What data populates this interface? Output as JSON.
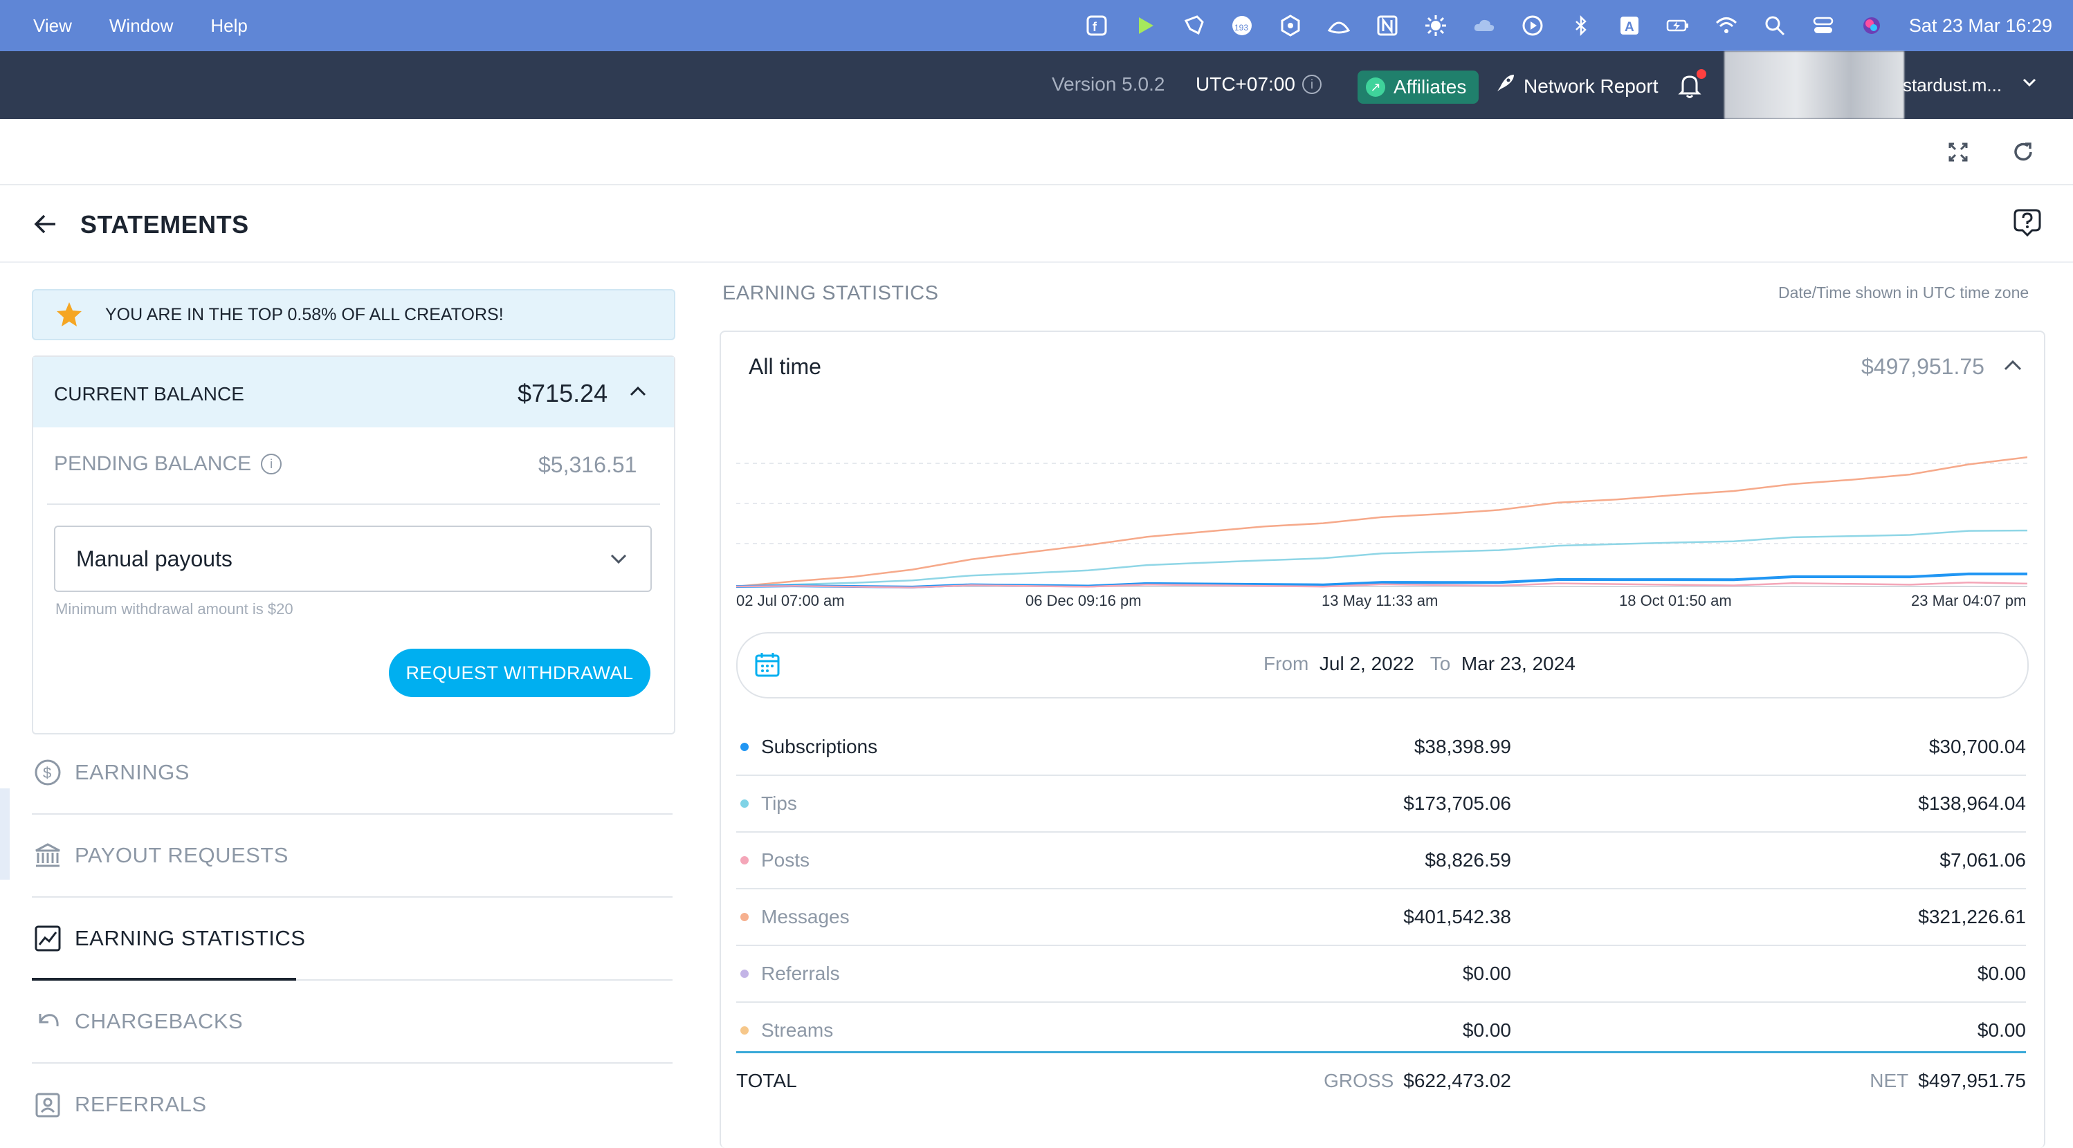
{
  "menubar": {
    "items": [
      "View",
      "Window",
      "Help"
    ],
    "clock": "Sat 23 Mar  16:29",
    "tray_icons": [
      "app-f-icon",
      "play-icon",
      "pen-icon",
      "calendar-badge-icon",
      "hexagon-icon",
      "lotus-icon",
      "notion-icon",
      "gear-sun-icon",
      "cloud-icon",
      "play-circle-icon",
      "bluetooth-icon",
      "a-keyboard-icon",
      "battery-icon",
      "wifi-icon",
      "search-icon",
      "control-center-icon",
      "siri-icon"
    ],
    "badge_count": "193"
  },
  "header": {
    "version": "Version 5.0.2",
    "timezone": "UTC+07:00",
    "affiliates": "Affiliates",
    "network_report": "Network Report",
    "account_name": "stardust.m..."
  },
  "page": {
    "title": "STATEMENTS"
  },
  "left": {
    "banner": "YOU ARE IN THE TOP 0.58% OF ALL CREATORS!",
    "current_balance_label": "CURRENT BALANCE",
    "current_balance": "$715.24",
    "pending_balance_label": "PENDING BALANCE",
    "pending_balance": "$5,316.51",
    "payout_mode": "Manual payouts",
    "min_withdrawal": "Minimum withdrawal amount is $20",
    "request_withdrawal": "REQUEST WITHDRAWAL",
    "nav": [
      {
        "label": "EARNINGS",
        "icon": "dollar-circle-icon"
      },
      {
        "label": "PAYOUT REQUESTS",
        "icon": "bank-icon"
      },
      {
        "label": "EARNING STATISTICS",
        "icon": "chart-icon"
      },
      {
        "label": "CHARGEBACKS",
        "icon": "undo-icon"
      },
      {
        "label": "REFERRALS",
        "icon": "contact-icon"
      }
    ]
  },
  "stats": {
    "title": "EARNING STATISTICS",
    "note": "Date/Time shown in UTC time zone",
    "period": "All time",
    "period_total": "$497,951.75",
    "date_from_label": "From",
    "date_from": "Jul 2, 2022",
    "date_to_label": "To",
    "date_to": "Mar 23, 2024",
    "rows": [
      {
        "name": "Subscriptions",
        "gross": "$38,398.99",
        "net": "$30,700.04",
        "color": "#2196f3"
      },
      {
        "name": "Tips",
        "gross": "$173,705.06",
        "net": "$138,964.04",
        "color": "#7fd3e6"
      },
      {
        "name": "Posts",
        "gross": "$8,826.59",
        "net": "$7,061.06",
        "color": "#f4a6b8"
      },
      {
        "name": "Messages",
        "gross": "$401,542.38",
        "net": "$321,226.61",
        "color": "#f6b08f"
      },
      {
        "name": "Referrals",
        "gross": "$0.00",
        "net": "$0.00",
        "color": "#c3b4e6"
      },
      {
        "name": "Streams",
        "gross": "$0.00",
        "net": "$0.00",
        "color": "#f6c78a"
      }
    ],
    "total_label": "TOTAL",
    "gross_label": "GROSS",
    "gross_total": "$622,473.02",
    "net_label": "NET",
    "net_total": "$497,951.75"
  },
  "chart_data": {
    "type": "line",
    "x_ticks": [
      "02 Jul 07:00 am",
      "06 Dec 09:16 pm",
      "13 May 11:33 am",
      "18 Oct 01:50 am",
      "23 Mar 04:07 pm"
    ],
    "series": [
      {
        "name": "Messages",
        "color": "#f6a98a",
        "values": [
          0,
          12,
          25,
          45,
          65,
          85,
          105,
          120,
          135,
          150,
          160,
          170,
          180,
          192,
          205,
          215,
          228,
          240,
          252,
          265,
          280,
          300,
          321
        ]
      },
      {
        "name": "Tips",
        "color": "#8fd6e6",
        "values": [
          0,
          4,
          10,
          18,
          25,
          33,
          42,
          50,
          58,
          66,
          73,
          80,
          86,
          92,
          98,
          104,
          110,
          115,
          120,
          125,
          130,
          135,
          139
        ]
      },
      {
        "name": "Subscriptions",
        "color": "#2196f3",
        "values": [
          0,
          0.5,
          1,
          1.5,
          2,
          2.5,
          3,
          4,
          5,
          6,
          7,
          8,
          10,
          12,
          14,
          16,
          18,
          20,
          22,
          24,
          26,
          28,
          31
        ]
      },
      {
        "name": "Posts",
        "color": "#f4a6b8",
        "values": [
          0,
          0.2,
          0.4,
          0.6,
          0.8,
          1,
          1.3,
          1.6,
          2,
          2.4,
          2.8,
          3.2,
          3.6,
          4,
          4.4,
          4.8,
          5.2,
          5.6,
          6,
          6.3,
          6.6,
          6.8,
          7
        ]
      }
    ]
  }
}
